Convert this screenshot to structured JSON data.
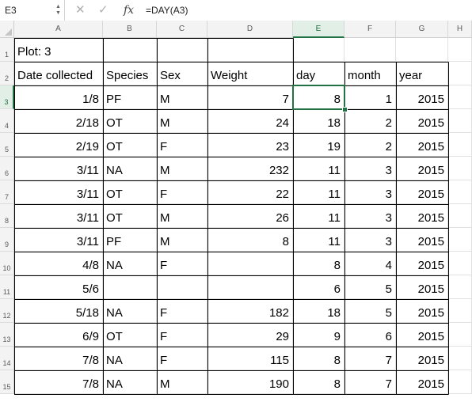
{
  "formula_bar": {
    "name_box": "E3",
    "formula": "=DAY(A3)",
    "fx_label": "fx",
    "cancel_glyph": "✕",
    "enter_glyph": "✓"
  },
  "columns": [
    "A",
    "B",
    "C",
    "D",
    "E",
    "F",
    "G",
    "H"
  ],
  "selected_cell": "E3",
  "rows": [
    {
      "num": "1",
      "cells": [
        "Plot: 3",
        "",
        "",
        "",
        "",
        "",
        ""
      ]
    },
    {
      "num": "2",
      "cells": [
        "Date collected",
        "Species",
        "Sex",
        "Weight",
        "day",
        "month",
        "year"
      ]
    },
    {
      "num": "3",
      "cells": [
        "1/8",
        "PF",
        "M",
        "7",
        "8",
        "1",
        "2015"
      ]
    },
    {
      "num": "4",
      "cells": [
        "2/18",
        "OT",
        "M",
        "24",
        "18",
        "2",
        "2015"
      ]
    },
    {
      "num": "5",
      "cells": [
        "2/19",
        "OT",
        "F",
        "23",
        "19",
        "2",
        "2015"
      ]
    },
    {
      "num": "6",
      "cells": [
        "3/11",
        "NA",
        "M",
        "232",
        "11",
        "3",
        "2015"
      ]
    },
    {
      "num": "7",
      "cells": [
        "3/11",
        "OT",
        "F",
        "22",
        "11",
        "3",
        "2015"
      ]
    },
    {
      "num": "8",
      "cells": [
        "3/11",
        "OT",
        "M",
        "26",
        "11",
        "3",
        "2015"
      ]
    },
    {
      "num": "9",
      "cells": [
        "3/11",
        "PF",
        "M",
        "8",
        "11",
        "3",
        "2015"
      ]
    },
    {
      "num": "10",
      "cells": [
        "4/8",
        "NA",
        "F",
        "",
        "8",
        "4",
        "2015"
      ]
    },
    {
      "num": "11",
      "cells": [
        "5/6",
        "",
        "",
        "",
        "6",
        "5",
        "2015"
      ]
    },
    {
      "num": "12",
      "cells": [
        "5/18",
        "NA",
        "F",
        "182",
        "18",
        "5",
        "2015"
      ]
    },
    {
      "num": "13",
      "cells": [
        "6/9",
        "OT",
        "F",
        "29",
        "9",
        "6",
        "2015"
      ]
    },
    {
      "num": "14",
      "cells": [
        "7/8",
        "NA",
        "F",
        "115",
        "8",
        "7",
        "2015"
      ]
    },
    {
      "num": "15",
      "cells": [
        "7/8",
        "NA",
        "M",
        "190",
        "8",
        "7",
        "2015"
      ]
    }
  ]
}
